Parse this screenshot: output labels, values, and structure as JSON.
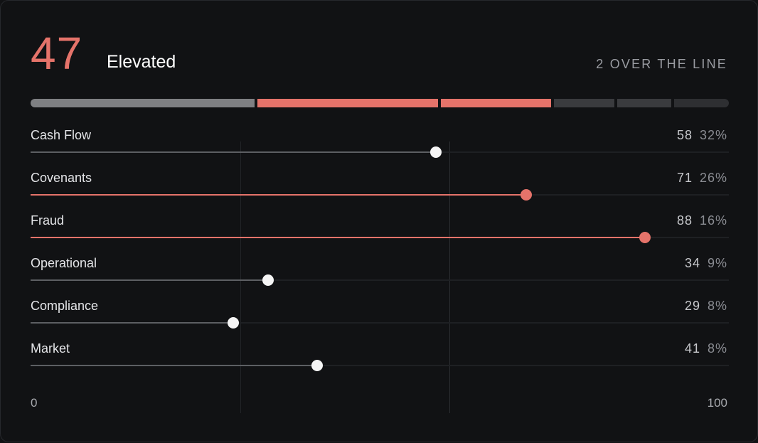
{
  "header": {
    "score": "47",
    "status": "Elevated",
    "summary": "2 OVER THE LINE"
  },
  "colors": {
    "alert": "#e5736a",
    "normal_dot": "#f5f5f5",
    "normal_fill": "#5d5f63",
    "alert_fill": "#e5736a",
    "seg_neutral": "#7f8083",
    "seg_dim": "#3a3b3e",
    "seg_dimmer": "#2e2f32",
    "track": "#1e2023",
    "gridline": "#222427",
    "gridline_threshold": "#2a2c30"
  },
  "chart_data": {
    "type": "dot",
    "xlim": [
      0,
      100
    ],
    "axis_min_label": "0",
    "axis_max_label": "100",
    "threshold": 60,
    "gridlines": [
      30,
      60
    ],
    "composition": [
      {
        "value": 32,
        "status": "neutral"
      },
      {
        "value": 26,
        "status": "alert"
      },
      {
        "value": 16,
        "status": "alert"
      },
      {
        "value": 9,
        "status": "dim"
      },
      {
        "value": 8,
        "status": "dim"
      },
      {
        "value": 8,
        "status": "dimmer"
      }
    ],
    "rows": [
      {
        "label": "Cash Flow",
        "value": 58,
        "value_text": "58",
        "share_text": "32%",
        "alert": false
      },
      {
        "label": "Covenants",
        "value": 71,
        "value_text": "71",
        "share_text": "26%",
        "alert": true
      },
      {
        "label": "Fraud",
        "value": 88,
        "value_text": "88",
        "share_text": "16%",
        "alert": true
      },
      {
        "label": "Operational",
        "value": 34,
        "value_text": "34",
        "share_text": "9%",
        "alert": false
      },
      {
        "label": "Compliance",
        "value": 29,
        "value_text": "29",
        "share_text": "8%",
        "alert": false
      },
      {
        "label": "Market",
        "value": 41,
        "value_text": "41",
        "share_text": "8%",
        "alert": false
      }
    ]
  }
}
